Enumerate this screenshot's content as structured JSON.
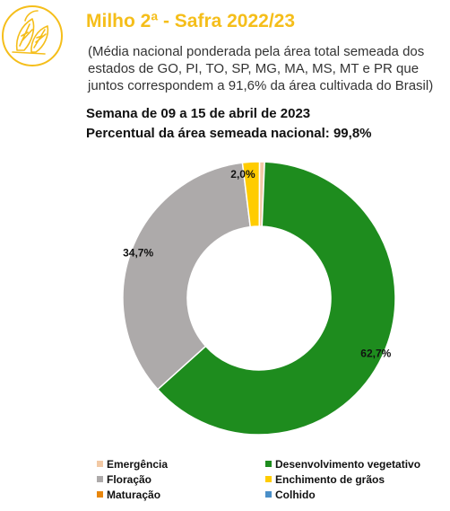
{
  "colors": {
    "title": "#F5BE1A",
    "icon_stroke": "#F5BE1A",
    "text": "#222222",
    "subtitle": "#333333"
  },
  "icon": "corn-icon",
  "header": {
    "title": "Milho 2ª - Safra 2022/23",
    "subtitle_lines": [
      "(Média nacional ponderada pela área total semeada dos",
      "estados de GO, PI, TO, SP, MG, MA, MS, MT e PR que",
      "juntos correspondem a 91,6% da área cultivada do Brasil)"
    ],
    "week": "Semana de 09 a 15 de abril de 2023",
    "sown": "Percentual da área semeada nacional: 99,8%"
  },
  "chart_data": {
    "type": "pie",
    "donut": true,
    "unit": "%",
    "series": [
      {
        "name": "Emergência",
        "value": 0.6,
        "label": "",
        "color": "#F2C9A5"
      },
      {
        "name": "Desenvolvimento vegetativo",
        "value": 62.7,
        "label": "62,7%",
        "color": "#1E8C1E"
      },
      {
        "name": "Floração",
        "value": 34.7,
        "label": "34,7%",
        "color": "#ADAAAA"
      },
      {
        "name": "Enchimento de grãos",
        "value": 2.0,
        "label": "2,0%",
        "color": "#FFCC00"
      },
      {
        "name": "Maturação",
        "value": 0.0,
        "label": "",
        "color": "#E8860C"
      },
      {
        "name": "Colhido",
        "value": 0.0,
        "label": "",
        "color": "#4A8FC8"
      }
    ],
    "legend_order": [
      "Emergência",
      "Desenvolvimento vegetativo",
      "Floração",
      "Enchimento de grãos",
      "Maturação",
      "Colhido"
    ],
    "legend_position": "bottom"
  }
}
